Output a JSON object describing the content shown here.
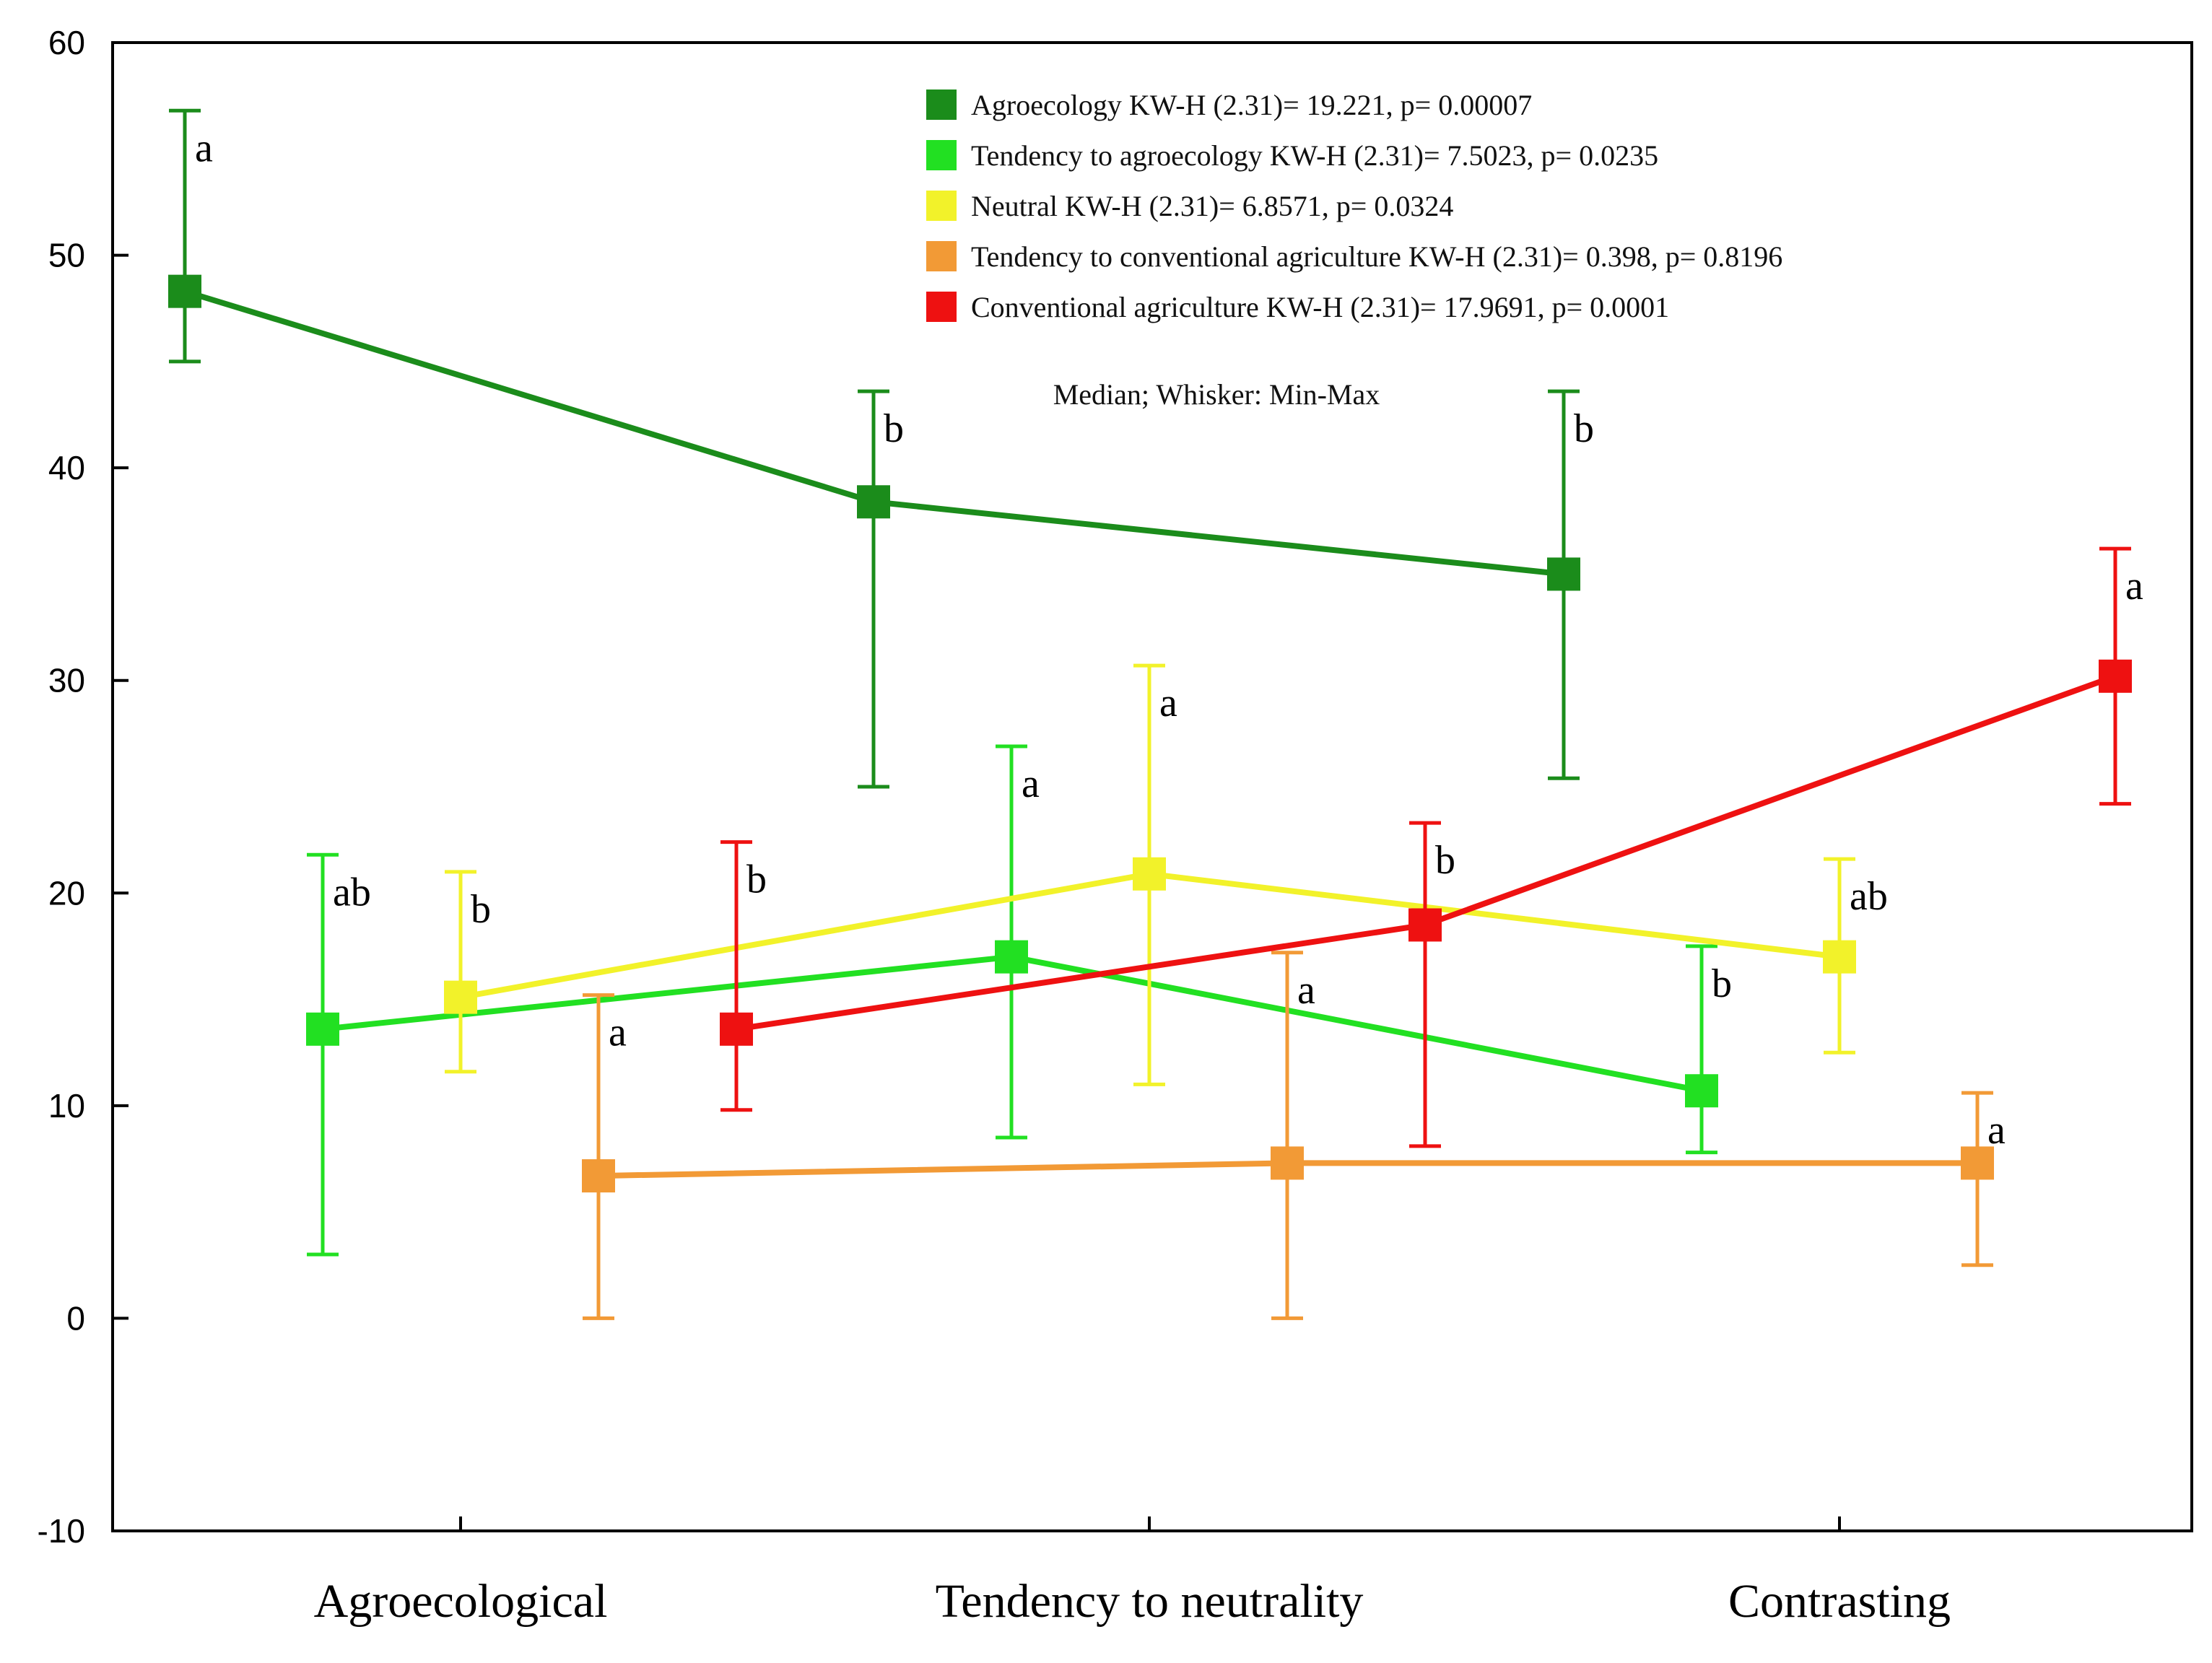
{
  "chart_data": {
    "type": "line",
    "title": "",
    "xlabel": "",
    "ylabel": "",
    "categories": [
      "Agroecological",
      "Tendency to neutrality",
      "Contrasting"
    ],
    "ylim": [
      -10,
      60
    ],
    "yticks": [
      -10,
      0,
      10,
      20,
      30,
      40,
      50,
      60
    ],
    "note": "Median; Whisker: Min-Max",
    "series": [
      {
        "name": "Agroecology KW-H (2.31)= 19.221, p= 0.00007",
        "color": "#1b8c1b",
        "offset": -0.4,
        "values": [
          48.3,
          38.4,
          35.0
        ],
        "min": [
          45.0,
          25.0,
          25.4
        ],
        "max": [
          56.8,
          43.6,
          43.6
        ],
        "letters": [
          "a",
          "b",
          "b"
        ]
      },
      {
        "name": "Tendency to agroecology KW-H (2.31)= 7.5023, p= 0.0235",
        "color": "#22e022",
        "offset": -0.2,
        "values": [
          13.6,
          17.0,
          10.7
        ],
        "min": [
          3.0,
          8.5,
          7.8
        ],
        "max": [
          21.8,
          26.9,
          17.5
        ],
        "letters": [
          "ab",
          "a",
          "b"
        ]
      },
      {
        "name": "Neutral KW-H (2.31)= 6.8571, p= 0.0324",
        "color": "#f2f22a",
        "offset": 0.0,
        "values": [
          15.1,
          20.9,
          17.0
        ],
        "min": [
          11.6,
          11.0,
          12.5
        ],
        "max": [
          21.0,
          30.7,
          21.6
        ],
        "letters": [
          "b",
          "a",
          "ab"
        ]
      },
      {
        "name": "Tendency to conventional agriculture KW-H (2.31)= 0.398, p= 0.8196",
        "color": "#f29a36",
        "offset": 0.2,
        "values": [
          6.7,
          7.3,
          7.3
        ],
        "min": [
          0.0,
          0.0,
          2.5
        ],
        "max": [
          15.2,
          17.2,
          10.6
        ],
        "letters": [
          "a",
          "a",
          "a"
        ]
      },
      {
        "name": "Conventional agriculture KW-H (2.31)= 17.9691, p= 0.0001",
        "color": "#ee1111",
        "offset": 0.4,
        "values": [
          13.6,
          18.5,
          30.2
        ],
        "min": [
          9.8,
          8.1,
          24.2
        ],
        "max": [
          22.4,
          23.3,
          36.2
        ],
        "letters": [
          "b",
          "b",
          "a"
        ]
      }
    ]
  }
}
